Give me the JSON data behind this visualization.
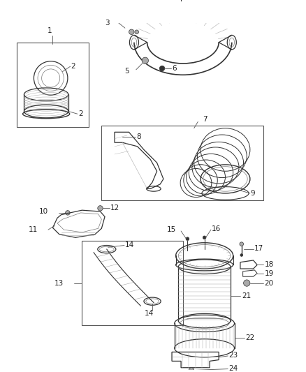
{
  "background_color": "#ffffff",
  "fig_width": 4.38,
  "fig_height": 5.33,
  "dpi": 100,
  "gray": "#333333",
  "lgray": "#777777",
  "vlgray": "#aaaaaa",
  "box_edge": "#555555",
  "label_color": "#222222",
  "label_fs": 7.5
}
